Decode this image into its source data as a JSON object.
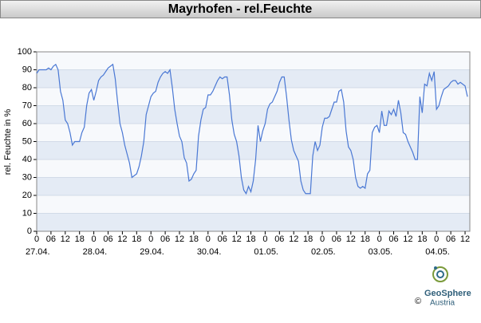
{
  "chart_data": {
    "type": "line",
    "title": "Mayrhofen - rel.Feuchte",
    "y_label": "rel. Feuchte in %",
    "color": "#4a78d4",
    "grid": true,
    "band_colors": [
      "#e4ebf5",
      "#f7f9fc"
    ],
    "x": [
      0,
      1,
      2,
      3,
      4,
      5,
      6,
      7,
      8,
      9,
      10,
      11,
      12,
      13,
      14,
      15,
      16,
      17,
      18,
      19,
      20,
      21,
      22,
      23,
      24,
      25,
      26,
      27,
      28,
      29,
      30,
      31,
      32,
      33,
      34,
      35,
      36,
      37,
      38,
      39,
      40,
      41,
      42,
      43,
      44,
      45,
      46,
      47,
      48,
      49,
      50,
      51,
      52,
      53,
      54,
      55,
      56,
      57,
      58,
      59,
      60,
      61,
      62,
      63,
      64,
      65,
      66,
      67,
      68,
      69,
      70,
      71,
      72,
      73,
      74,
      75,
      76,
      77,
      78,
      79,
      80,
      81,
      82,
      83,
      84,
      85,
      86,
      87,
      88,
      89,
      90,
      91,
      92,
      93,
      94,
      95,
      96,
      97,
      98,
      99,
      100,
      101,
      102,
      103,
      104,
      105,
      106,
      107,
      108,
      109,
      110,
      111,
      112,
      113,
      114,
      115,
      116,
      117,
      118,
      119,
      120,
      121,
      122,
      123,
      124,
      125,
      126,
      127,
      128,
      129,
      130,
      131,
      132,
      133,
      134,
      135,
      136,
      137,
      138,
      139,
      140,
      141,
      142,
      143,
      144,
      145,
      146,
      147,
      148,
      149,
      150,
      151,
      152,
      153,
      154,
      155,
      156,
      157,
      158,
      159,
      160,
      161,
      162,
      163,
      164,
      165,
      166,
      167,
      168,
      169,
      170,
      171,
      172,
      173,
      174,
      175,
      176,
      177,
      178,
      179,
      180,
      181
    ],
    "values": [
      88,
      90,
      90,
      90,
      90,
      91,
      90,
      92,
      93,
      90,
      78,
      73,
      62,
      60,
      55,
      48,
      50,
      50,
      50,
      55,
      58,
      70,
      77,
      79,
      73,
      78,
      84,
      86,
      87,
      89,
      91,
      92,
      93,
      85,
      72,
      60,
      55,
      48,
      43,
      38,
      30,
      31,
      32,
      36,
      42,
      50,
      65,
      70,
      75,
      77,
      78,
      83,
      86,
      88,
      89,
      88,
      90,
      80,
      68,
      60,
      53,
      50,
      41,
      38,
      28,
      29,
      32,
      34,
      53,
      62,
      68,
      69,
      76,
      76,
      78,
      81,
      84,
      86,
      85,
      86,
      86,
      76,
      62,
      54,
      50,
      42,
      30,
      23,
      21,
      25,
      22,
      28,
      40,
      59,
      50,
      56,
      60,
      68,
      71,
      72,
      75,
      78,
      83,
      86,
      86,
      75,
      62,
      51,
      45,
      42,
      39,
      28,
      23,
      21,
      21,
      21,
      42,
      50,
      45,
      48,
      58,
      63,
      63,
      64,
      68,
      72,
      72,
      78,
      79,
      72,
      56,
      47,
      45,
      40,
      30,
      25,
      24,
      25,
      24,
      32,
      34,
      55,
      58,
      59,
      55,
      67,
      59,
      59,
      67,
      65,
      68,
      64,
      73,
      66,
      55,
      54,
      50,
      47,
      44,
      40,
      40,
      75,
      66,
      82,
      81,
      88,
      84,
      89,
      68,
      70,
      75,
      79,
      80,
      81,
      83,
      84,
      84,
      82,
      83,
      82,
      81,
      75
    ],
    "xlim": [
      0,
      182
    ],
    "ylim": [
      0,
      100
    ],
    "yticks": [
      0,
      10,
      20,
      30,
      40,
      50,
      60,
      70,
      80,
      90,
      100
    ],
    "xticks": [
      0,
      {
        "value": 6,
        "label": "06"
      },
      12,
      18,
      {
        "value": 24,
        "label": "0"
      },
      {
        "value": 30,
        "label": "06"
      },
      {
        "value": 36,
        "label": "12"
      },
      {
        "value": 42,
        "label": "18"
      },
      {
        "value": 48,
        "label": "0"
      },
      {
        "value": 54,
        "label": "06"
      },
      {
        "value": 60,
        "label": "12"
      },
      {
        "value": 66,
        "label": "18"
      },
      {
        "value": 72,
        "label": "0"
      },
      {
        "value": 78,
        "label": "06"
      },
      {
        "value": 84,
        "label": "12"
      },
      {
        "value": 90,
        "label": "18"
      },
      {
        "value": 96,
        "label": "0"
      },
      {
        "value": 102,
        "label": "06"
      },
      {
        "value": 108,
        "label": "12"
      },
      {
        "value": 114,
        "label": "18"
      },
      {
        "value": 120,
        "label": "0"
      },
      {
        "value": 126,
        "label": "06"
      },
      {
        "value": 132,
        "label": "12"
      },
      {
        "value": 138,
        "label": "18"
      },
      {
        "value": 144,
        "label": "0"
      },
      {
        "value": 150,
        "label": "06"
      },
      {
        "value": 156,
        "label": "12"
      },
      {
        "value": 162,
        "label": "18"
      },
      {
        "value": 168,
        "label": "0"
      },
      {
        "value": 174,
        "label": "06"
      },
      {
        "value": 180,
        "label": "12"
      }
    ],
    "date_labels": [
      {
        "value": 0,
        "label": "27.04."
      },
      {
        "value": 24,
        "label": "28.04."
      },
      {
        "value": 48,
        "label": "29.04."
      },
      {
        "value": 72,
        "label": "30.04."
      },
      {
        "value": 96,
        "label": "01.05."
      },
      {
        "value": 120,
        "label": "02.05."
      },
      {
        "value": 144,
        "label": "03.05."
      },
      {
        "value": 168,
        "label": "04.05."
      }
    ],
    "logo_name": "GeoSphere",
    "logo_sub": "Austria",
    "copyright": "©"
  }
}
